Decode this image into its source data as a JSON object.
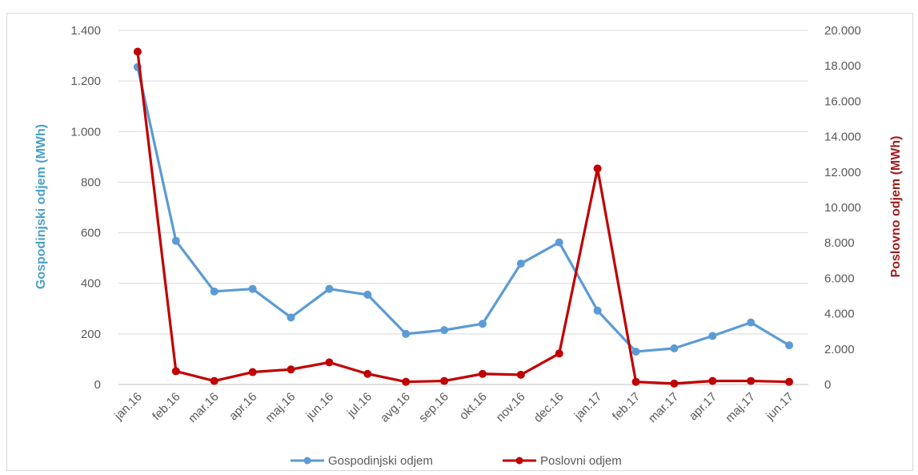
{
  "chart_data": {
    "type": "line",
    "title": "",
    "categories": [
      "jan.16",
      "feb.16",
      "mar.16",
      "apr.16",
      "maj.16",
      "jun.16",
      "jul.16",
      "avg.16",
      "sep.16",
      "okt.16",
      "nov.16",
      "dec.16",
      "jan.17",
      "feb.17",
      "mar.17",
      "apr.17",
      "maj.17",
      "jun.17"
    ],
    "y_left": {
      "label": "Gospodinjski odjem (MWh)",
      "range": [
        0,
        1400
      ],
      "ticks": [
        0,
        200,
        400,
        600,
        800,
        1000,
        1200,
        1400
      ],
      "tick_labels": [
        "0",
        "200",
        "400",
        "600",
        "800",
        "1.000",
        "1.200",
        "1.400"
      ]
    },
    "y_right": {
      "label": "Poslovno odjem (MWh)",
      "range": [
        0,
        20000
      ],
      "ticks": [
        0,
        2000,
        4000,
        6000,
        8000,
        10000,
        12000,
        14000,
        16000,
        18000,
        20000
      ],
      "tick_labels": [
        "0",
        "2.000",
        "4.000",
        "6.000",
        "8.000",
        "10.000",
        "12.000",
        "14.000",
        "16.000",
        "18.000",
        "20.000"
      ]
    },
    "series": [
      {
        "name": "Gospodinjski odjem",
        "axis": "left",
        "color": "#5b9bd5",
        "values": [
          1255,
          568,
          368,
          378,
          265,
          378,
          355,
          200,
          215,
          240,
          478,
          562,
          292,
          130,
          143,
          192,
          245,
          155
        ]
      },
      {
        "name": "Poslovni odjem",
        "axis": "right",
        "color": "#c00000",
        "values": [
          18800,
          750,
          200,
          700,
          850,
          1250,
          600,
          150,
          200,
          600,
          550,
          1750,
          12200,
          150,
          50,
          200,
          200,
          150
        ]
      }
    ],
    "grid": true,
    "legend_position": "bottom"
  }
}
